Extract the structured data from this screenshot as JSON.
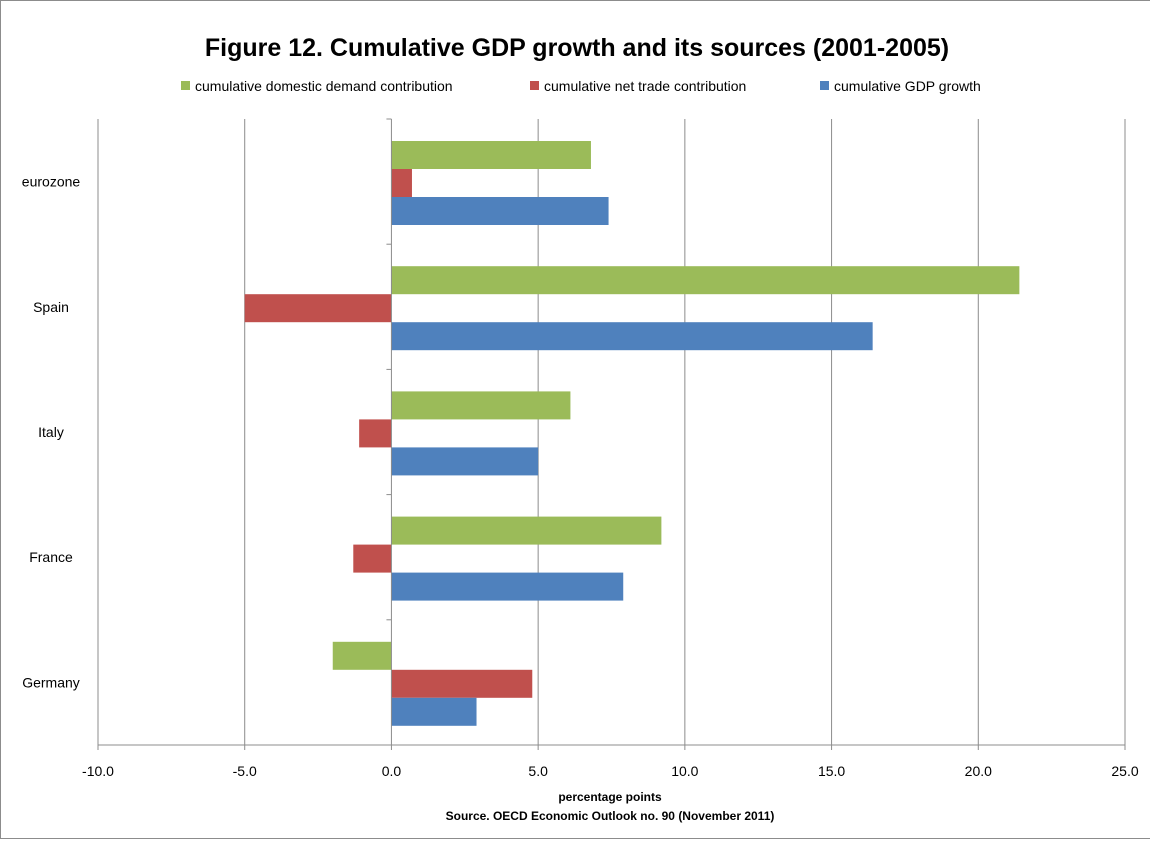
{
  "chart_data": {
    "type": "bar",
    "orientation": "horizontal",
    "title": "Figure 12. Cumulative GDP growth and its sources (2001-2005)",
    "xlabel": "percentage points",
    "source": "Source. OECD Economic Outlook no. 90 (November 2011)",
    "categories": [
      "eurozone",
      "Spain",
      "Italy",
      "France",
      "Germany"
    ],
    "series": [
      {
        "name": "cumulative domestic demand contribution",
        "color": "#9bbb59",
        "values": [
          6.8,
          21.4,
          6.1,
          9.2,
          -2.0
        ]
      },
      {
        "name": "cumulative net trade contribution",
        "color": "#c0504d",
        "values": [
          0.7,
          -5.0,
          -1.1,
          -1.3,
          4.8
        ]
      },
      {
        "name": "cumulative GDP growth",
        "color": "#4f81bd",
        "values": [
          7.4,
          16.4,
          5.0,
          7.9,
          2.9
        ]
      }
    ],
    "xlim": [
      -10,
      25
    ],
    "xticks": [
      "-10.0",
      "-5.0",
      "0.0",
      "5.0",
      "10.0",
      "15.0",
      "20.0",
      "25.0"
    ],
    "grid": true,
    "legend_position": "top"
  }
}
